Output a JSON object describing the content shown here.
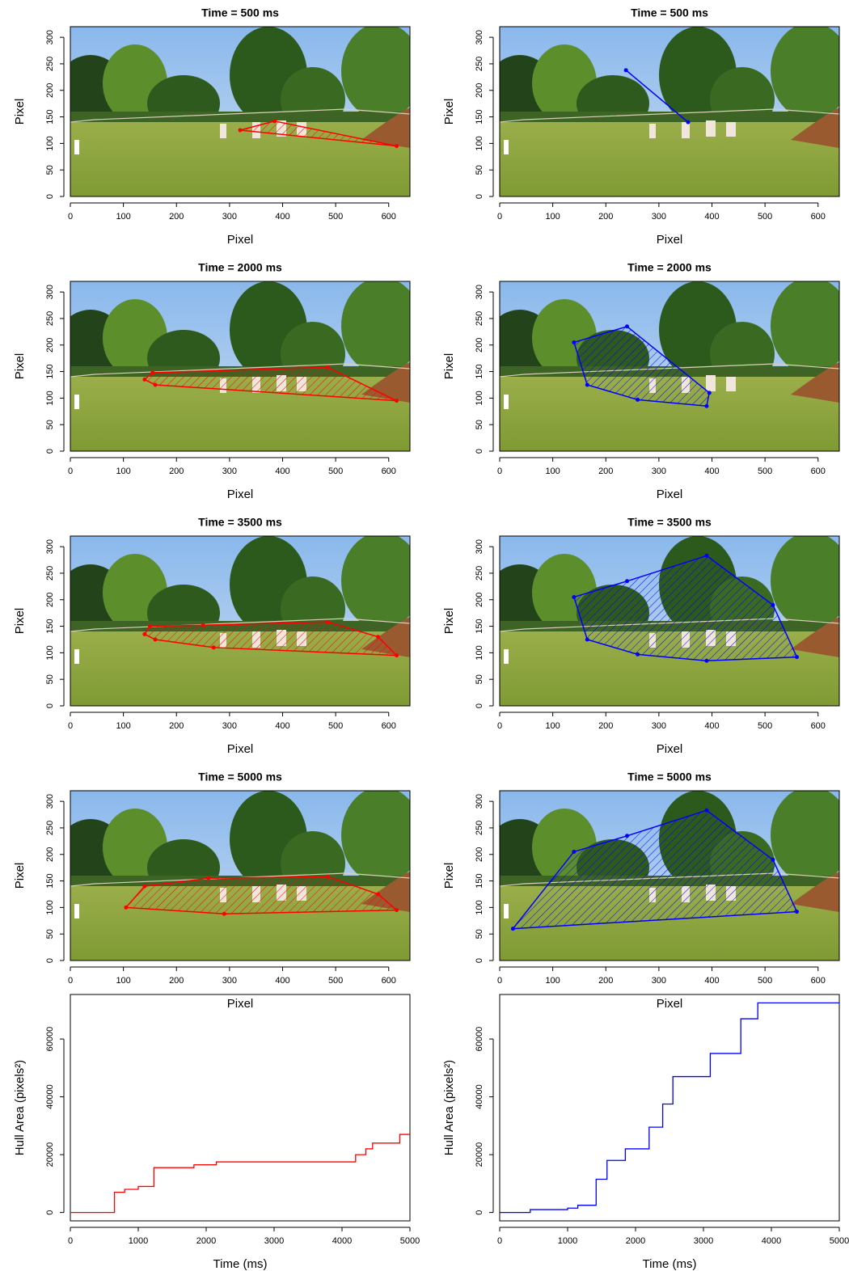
{
  "chart_data": [
    {
      "type": "hull",
      "title": "Time =  500 ms",
      "xlabel": "Pixel",
      "ylabel": "Pixel",
      "color": "#ff0000",
      "xlim": [
        0,
        640
      ],
      "ylim": [
        0,
        320
      ],
      "xticks": [
        0,
        100,
        200,
        300,
        400,
        500,
        600
      ],
      "yticks": [
        0,
        50,
        100,
        150,
        200,
        250,
        300
      ],
      "x": [
        320,
        385,
        615
      ],
      "y": [
        125,
        142,
        95
      ]
    },
    {
      "type": "hull",
      "title": "Time =  500 ms",
      "xlabel": "Pixel",
      "ylabel": "Pixel",
      "color": "#0000ff",
      "xlim": [
        0,
        640
      ],
      "ylim": [
        0,
        320
      ],
      "xticks": [
        0,
        100,
        200,
        300,
        400,
        500,
        600
      ],
      "yticks": [
        0,
        50,
        100,
        150,
        200,
        250,
        300
      ],
      "x": [
        238,
        355
      ],
      "y": [
        238,
        140
      ]
    },
    {
      "type": "hull",
      "title": "Time =  2000 ms",
      "xlabel": "Pixel",
      "ylabel": "Pixel",
      "color": "#ff0000",
      "xlim": [
        0,
        640
      ],
      "ylim": [
        0,
        320
      ],
      "xticks": [
        0,
        100,
        200,
        300,
        400,
        500,
        600
      ],
      "yticks": [
        0,
        50,
        100,
        150,
        200,
        250,
        300
      ],
      "x": [
        140,
        155,
        485,
        615,
        160
      ],
      "y": [
        135,
        148,
        158,
        95,
        125
      ]
    },
    {
      "type": "hull",
      "title": "Time =  2000 ms",
      "xlabel": "Pixel",
      "ylabel": "Pixel",
      "color": "#0000ff",
      "xlim": [
        0,
        640
      ],
      "ylim": [
        0,
        320
      ],
      "xticks": [
        0,
        100,
        200,
        300,
        400,
        500,
        600
      ],
      "yticks": [
        0,
        50,
        100,
        150,
        200,
        250,
        300
      ],
      "x": [
        140,
        240,
        395,
        390,
        260,
        165
      ],
      "y": [
        205,
        235,
        110,
        85,
        97,
        125
      ]
    },
    {
      "type": "hull",
      "title": "Time =  3500 ms",
      "xlabel": "Pixel",
      "ylabel": "Pixel",
      "color": "#ff0000",
      "xlim": [
        0,
        640
      ],
      "ylim": [
        0,
        320
      ],
      "xticks": [
        0,
        100,
        200,
        300,
        400,
        500,
        600
      ],
      "yticks": [
        0,
        50,
        100,
        150,
        200,
        250,
        300
      ],
      "x": [
        140,
        150,
        250,
        485,
        580,
        615,
        270,
        160
      ],
      "y": [
        135,
        150,
        152,
        158,
        130,
        95,
        110,
        125
      ]
    },
    {
      "type": "hull",
      "title": "Time =  3500 ms",
      "xlabel": "Pixel",
      "ylabel": "Pixel",
      "color": "#0000ff",
      "xlim": [
        0,
        640
      ],
      "ylim": [
        0,
        320
      ],
      "xticks": [
        0,
        100,
        200,
        300,
        400,
        500,
        600
      ],
      "yticks": [
        0,
        50,
        100,
        150,
        200,
        250,
        300
      ],
      "x": [
        140,
        240,
        390,
        515,
        560,
        390,
        260,
        165
      ],
      "y": [
        205,
        235,
        283,
        190,
        92,
        85,
        97,
        125
      ]
    },
    {
      "type": "hull",
      "title": "Time =  5000 ms",
      "xlabel": "Pixel",
      "ylabel": "Pixel",
      "color": "#ff0000",
      "xlim": [
        0,
        640
      ],
      "ylim": [
        0,
        320
      ],
      "xticks": [
        0,
        100,
        200,
        300,
        400,
        500,
        600
      ],
      "yticks": [
        0,
        50,
        100,
        150,
        200,
        250,
        300
      ],
      "x": [
        105,
        140,
        260,
        485,
        580,
        615,
        290
      ],
      "y": [
        100,
        140,
        155,
        158,
        125,
        95,
        88
      ]
    },
    {
      "type": "hull",
      "title": "Time =  5000 ms",
      "xlabel": "Pixel",
      "ylabel": "Pixel",
      "color": "#0000ff",
      "xlim": [
        0,
        640
      ],
      "ylim": [
        0,
        320
      ],
      "xticks": [
        0,
        100,
        200,
        300,
        400,
        500,
        600
      ],
      "yticks": [
        0,
        50,
        100,
        150,
        200,
        250,
        300
      ],
      "x": [
        25,
        140,
        240,
        390,
        515,
        560
      ],
      "y": [
        60,
        205,
        235,
        283,
        190,
        92
      ]
    },
    {
      "type": "step",
      "xlabel": "Time (ms)",
      "ylabel": "Hull Area (pixels²)",
      "color": "#ff0000",
      "xlim": [
        0,
        5000
      ],
      "ylim": [
        -2900,
        75400
      ],
      "xticks": [
        0,
        1000,
        2000,
        3000,
        4000,
        5000
      ],
      "yticks": [
        0,
        20000,
        40000,
        60000
      ],
      "x": [
        0,
        650,
        800,
        1000,
        1230,
        1820,
        2150,
        4200,
        4350,
        4450,
        4850,
        5000
      ],
      "values": [
        0,
        7000,
        8000,
        9000,
        15500,
        16500,
        17500,
        20000,
        22000,
        24000,
        27000,
        27000
      ]
    },
    {
      "type": "step",
      "xlabel": "Time (ms)",
      "ylabel": "Hull Area (pixels²)",
      "color": "#0000ff",
      "xlim": [
        0,
        5000
      ],
      "ylim": [
        -2900,
        75400
      ],
      "xticks": [
        0,
        1000,
        2000,
        3000,
        4000,
        5000
      ],
      "yticks": [
        0,
        20000,
        40000,
        60000
      ],
      "x": [
        0,
        450,
        1000,
        1150,
        1420,
        1580,
        1850,
        2200,
        2400,
        2550,
        3100,
        3550,
        3800,
        5000
      ],
      "values": [
        0,
        1000,
        1500,
        2500,
        11500,
        18000,
        22000,
        29500,
        37500,
        47000,
        55000,
        67000,
        72500,
        72500
      ]
    }
  ]
}
